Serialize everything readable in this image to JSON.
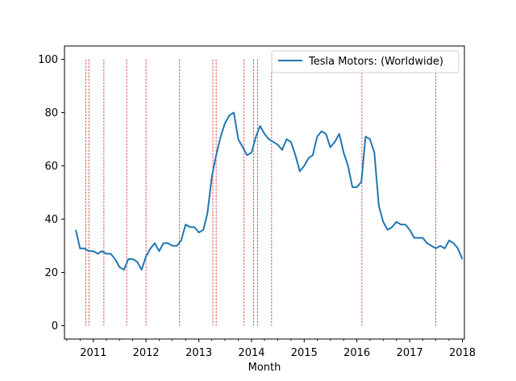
{
  "chart_data": {
    "type": "line",
    "title": "",
    "xlabel": "Month",
    "ylabel": "",
    "xlim": [
      "2010-06-15",
      "2018-01-15"
    ],
    "ylim": [
      -5,
      105
    ],
    "yticks": [
      0,
      20,
      40,
      60,
      80,
      100
    ],
    "xticks": [
      {
        "label": "2011",
        "date": "2011-01-01"
      },
      {
        "label": "2012",
        "date": "2012-01-01"
      },
      {
        "label": "2013",
        "date": "2013-01-01"
      },
      {
        "label": "2014",
        "date": "2014-01-01"
      },
      {
        "label": "2015",
        "date": "2015-01-01"
      },
      {
        "label": "2016",
        "date": "2016-01-01"
      },
      {
        "label": "2017",
        "date": "2017-01-01"
      },
      {
        "label": "2018",
        "date": "2018-01-01"
      }
    ],
    "grid": false,
    "legend_position": "top-right",
    "series": [
      {
        "name": "Tesla Motors: (Worldwide)",
        "color": "#1f77b4",
        "x": [
          "2010-09",
          "2010-10",
          "2010-11",
          "2010-12",
          "2011-01",
          "2011-02",
          "2011-03",
          "2011-04",
          "2011-05",
          "2011-06",
          "2011-07",
          "2011-08",
          "2011-09",
          "2011-10",
          "2011-11",
          "2011-12",
          "2012-01",
          "2012-02",
          "2012-03",
          "2012-04",
          "2012-05",
          "2012-06",
          "2012-07",
          "2012-08",
          "2012-09",
          "2012-10",
          "2012-11",
          "2012-12",
          "2013-01",
          "2013-02",
          "2013-03",
          "2013-04",
          "2013-05",
          "2013-06",
          "2013-07",
          "2013-08",
          "2013-09",
          "2013-10",
          "2013-11",
          "2013-12",
          "2014-01",
          "2014-02",
          "2014-03",
          "2014-04",
          "2014-05",
          "2014-06",
          "2014-07",
          "2014-08",
          "2014-09",
          "2014-10",
          "2014-11",
          "2014-12",
          "2015-01",
          "2015-02",
          "2015-03",
          "2015-04",
          "2015-05",
          "2015-06",
          "2015-07",
          "2015-08",
          "2015-09",
          "2015-10",
          "2015-11",
          "2015-12",
          "2016-01",
          "2016-02",
          "2016-03",
          "2016-04",
          "2016-05",
          "2016-06",
          "2016-07",
          "2016-08",
          "2016-09",
          "2016-10",
          "2016-11",
          "2016-12",
          "2017-01",
          "2017-02",
          "2017-03",
          "2017-04",
          "2017-05",
          "2017-06",
          "2017-07",
          "2017-08",
          "2017-09",
          "2017-10",
          "2017-11",
          "2017-12",
          "2018-01"
        ],
        "y": [
          36,
          29,
          29,
          28,
          28,
          27,
          28,
          27,
          27,
          25,
          22,
          21,
          25,
          25,
          24,
          21,
          26,
          29,
          31,
          28,
          31,
          31,
          30,
          30,
          32,
          38,
          37,
          37,
          35,
          36,
          42,
          56,
          64,
          71,
          76,
          79,
          80,
          70,
          67,
          64,
          65,
          71,
          75,
          72,
          70,
          69,
          68,
          66,
          70,
          69,
          64,
          58,
          60,
          63,
          64,
          71,
          73,
          72,
          67,
          69,
          72,
          65,
          60,
          52,
          52,
          54,
          71,
          70,
          65,
          45,
          39,
          36,
          37,
          39,
          38,
          38,
          36,
          33,
          33,
          33,
          31,
          30,
          29,
          30,
          29,
          32,
          31,
          29,
          25
        ]
      }
    ],
    "event_lines": {
      "color": "#d62728",
      "style": "dashed",
      "dates": [
        "2010-11-10",
        "2010-12-01",
        "2011-03-15",
        "2011-08-20",
        "2012-01-01",
        "2012-08-20",
        "2013-04-08",
        "2013-05-01",
        "2013-11-10",
        "2014-01-15",
        "2014-02-12",
        "2014-05-20",
        "2016-02-05",
        "2017-07-01"
      ]
    }
  }
}
